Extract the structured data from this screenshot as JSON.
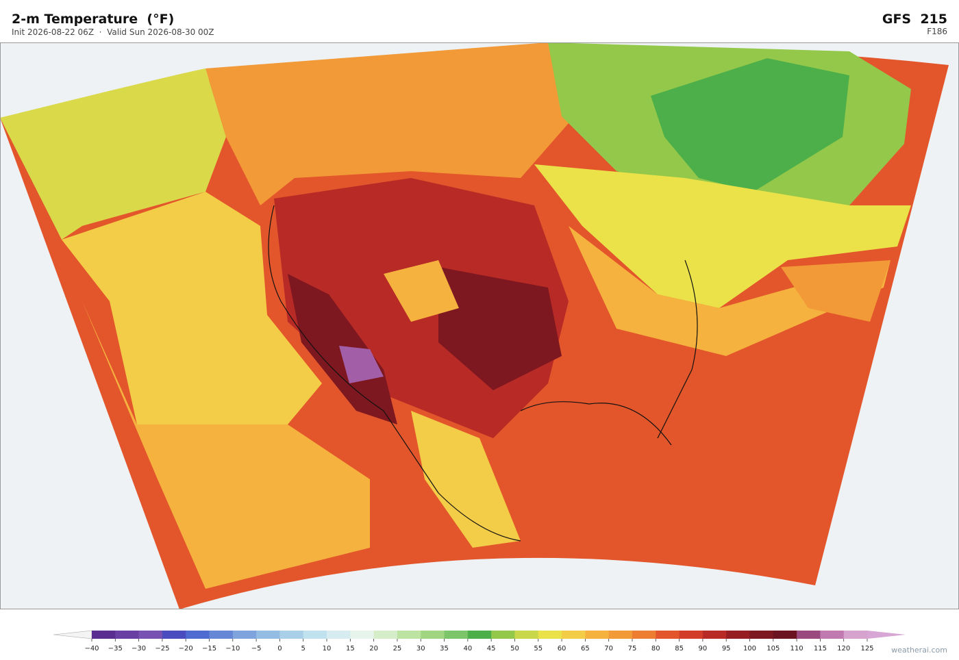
{
  "header": {
    "title": "2-m Temperature  (°F)",
    "subtitle": "Init 2026-08-22 06Z  ·  Valid Sun 2026-08-30 00Z",
    "model": "GFS  215",
    "forecast_hour": "F186"
  },
  "colorbar": {
    "ticks": [
      {
        "value": -40,
        "label": "−40"
      },
      {
        "value": -35,
        "label": "−35"
      },
      {
        "value": -30,
        "label": "−30"
      },
      {
        "value": -25,
        "label": "−25"
      },
      {
        "value": -20,
        "label": "−20"
      },
      {
        "value": -15,
        "label": "−15"
      },
      {
        "value": -10,
        "label": "−10"
      },
      {
        "value": -5,
        "label": "−5"
      },
      0,
      5,
      10,
      15,
      20,
      25,
      30,
      35,
      40,
      45,
      50,
      55,
      60,
      65,
      70,
      75,
      80,
      85,
      90,
      95,
      100,
      105,
      110,
      115,
      120,
      125
    ],
    "colors": [
      "#5a2d91",
      "#6a3fa3",
      "#7852b3",
      "#4b4cbf",
      "#4f6ad0",
      "#6687d6",
      "#7fa3dc",
      "#93bde2",
      "#a9d0e8",
      "#c0e1ee",
      "#d6ecf1",
      "#e6f4ec",
      "#d5edc9",
      "#bde3a3",
      "#a0d682",
      "#7cc56a",
      "#4caf4a",
      "#93c84a",
      "#c9d84a",
      "#ebe24a",
      "#f3cd47",
      "#f5b23f",
      "#f19a37",
      "#ec7d31",
      "#e3562b",
      "#d23c28",
      "#b82a25",
      "#961d22",
      "#7d1720",
      "#6b1320",
      "#9a4a7e",
      "#c07ab0",
      "#d6a3cf"
    ],
    "under_color": "#f4f4f4",
    "over_color": "#d7a6d4"
  },
  "watermark": "weatherai.com"
}
